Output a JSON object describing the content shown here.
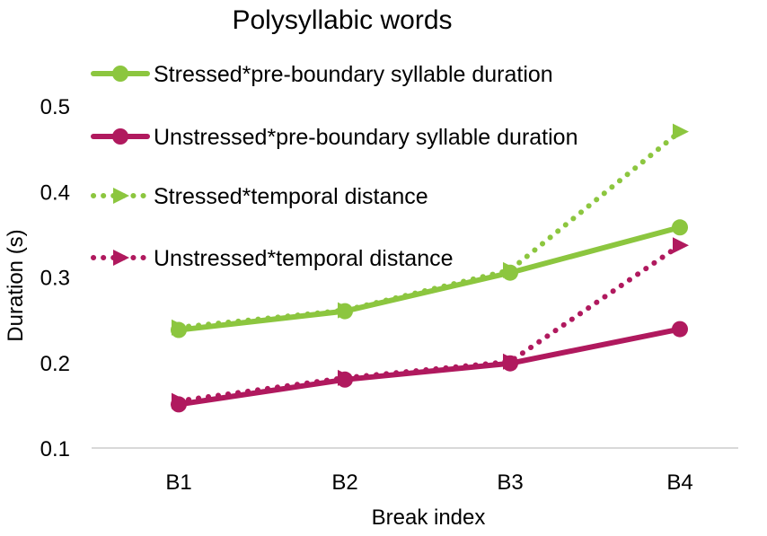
{
  "chart_data": {
    "type": "line",
    "title": "Polysyllabic words",
    "xlabel": "Break index",
    "ylabel": "Duration (s)",
    "categories": [
      "B1",
      "B2",
      "B3",
      "B4"
    ],
    "ylim": [
      0.1,
      0.5
    ],
    "yticks": [
      "0.1",
      "0.2",
      "0.3",
      "0.4",
      "0.5"
    ],
    "grid": "none",
    "legend": "top-left, inside",
    "series": [
      {
        "name": "Stressed*pre-boundary syllable duration",
        "values": [
          0.238,
          0.26,
          0.305,
          0.358
        ],
        "color": "#8cc63f",
        "style": "solid",
        "marker": "circle"
      },
      {
        "name": "Unstressed*pre-boundary syllable duration",
        "values": [
          0.151,
          0.18,
          0.199,
          0.239
        ],
        "color": "#b0195e",
        "style": "solid",
        "marker": "circle"
      },
      {
        "name": "Stressed*temporal distance",
        "values": [
          0.241,
          0.261,
          0.308,
          0.47
        ],
        "color": "#8cc63f",
        "style": "dotted",
        "marker": "arrow"
      },
      {
        "name": "Unstressed*temporal distance",
        "values": [
          0.155,
          0.182,
          0.201,
          0.337
        ],
        "color": "#b0195e",
        "style": "dotted",
        "marker": "arrow"
      }
    ]
  }
}
